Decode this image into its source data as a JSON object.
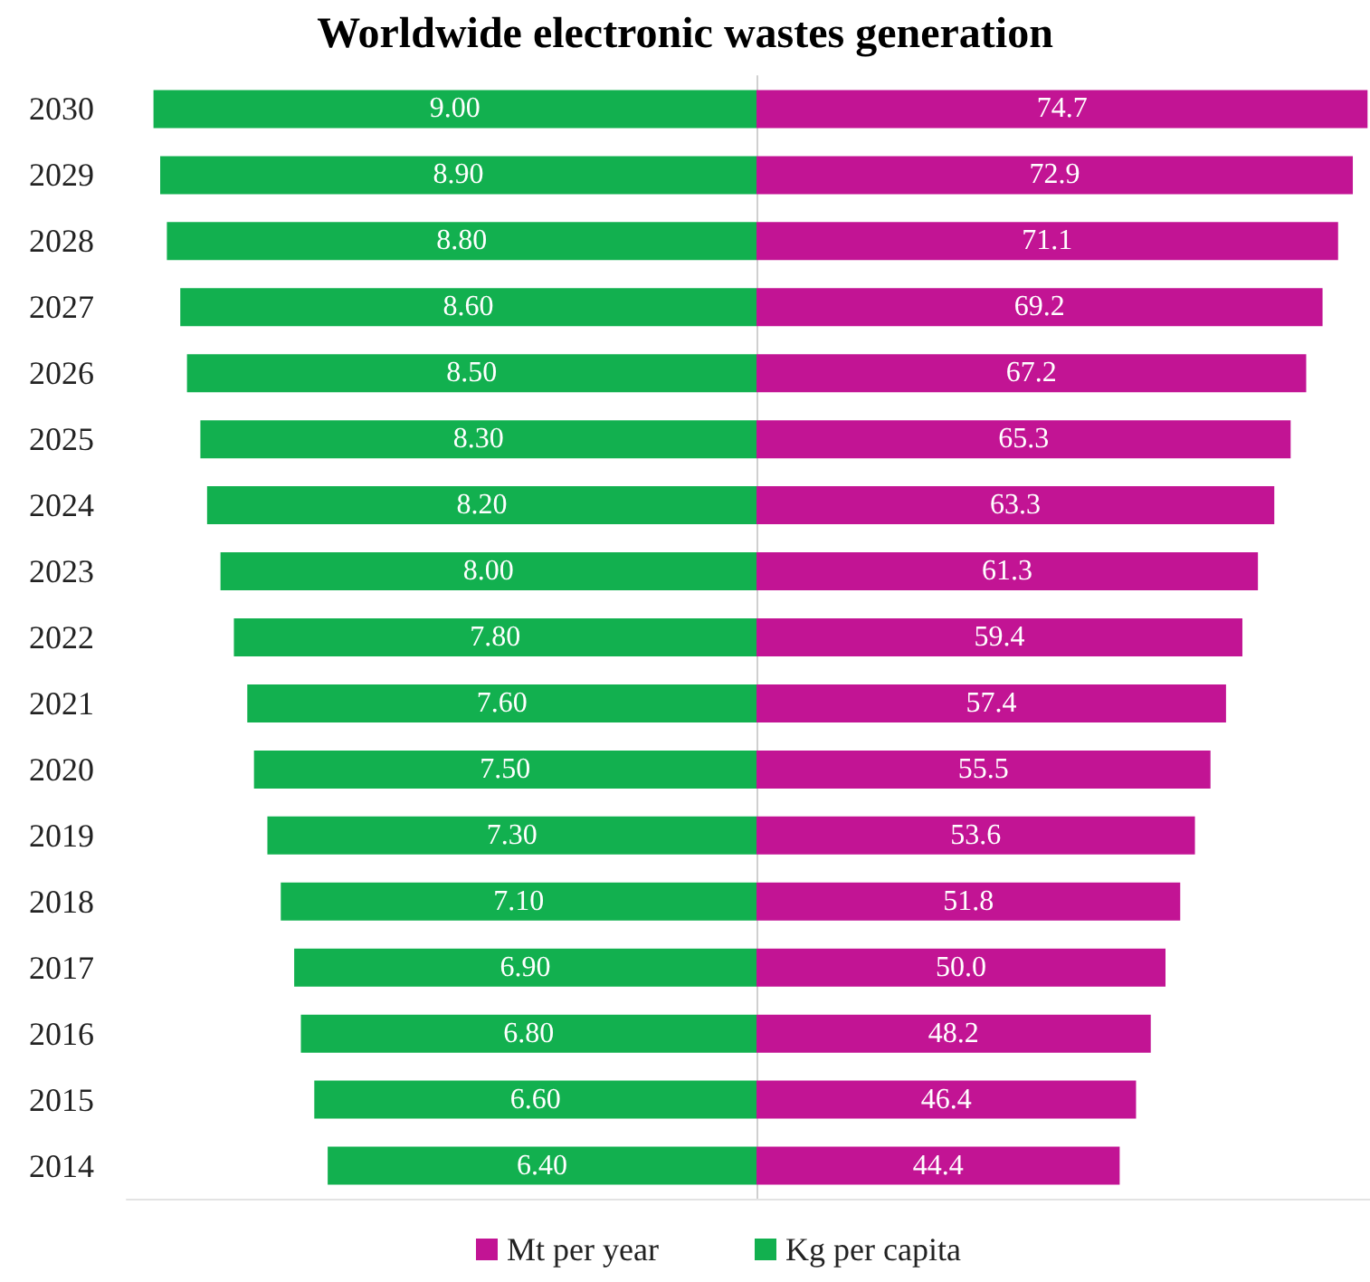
{
  "chart_data": [
    {
      "type": "bar",
      "title": "Worldwide electronic wastes generation",
      "orientation": "horizontal",
      "legend": "bottom",
      "tick_labels": "y",
      "xlim": [
        9.4,
        0
      ],
      "categories": [
        "2030",
        "2029",
        "2028",
        "2027",
        "2026",
        "2025",
        "2024",
        "2023",
        "2022",
        "2021",
        "2020",
        "2019",
        "2018",
        "2017",
        "2016",
        "2015",
        "2014"
      ],
      "series": [
        {
          "name": "Kg per capita",
          "color": "#12b04f",
          "values": [
            9.0,
            8.9,
            8.8,
            8.6,
            8.5,
            8.3,
            8.2,
            8.0,
            7.8,
            7.6,
            7.5,
            7.3,
            7.1,
            6.9,
            6.8,
            6.6,
            6.4
          ],
          "value_labels": [
            "9.00",
            "8.90",
            "8.80",
            "8.60",
            "8.50",
            "8.30",
            "8.20",
            "8.00",
            "7.80",
            "7.60",
            "7.50",
            "7.30",
            "7.10",
            "6.90",
            "6.80",
            "6.60",
            "6.40"
          ]
        }
      ]
    },
    {
      "type": "bar",
      "orientation": "horizontal",
      "legend": "bottom",
      "tick_labels": false,
      "xlim": [
        0,
        75
      ],
      "categories": [
        "2030",
        "2029",
        "2028",
        "2027",
        "2026",
        "2025",
        "2024",
        "2023",
        "2022",
        "2021",
        "2020",
        "2019",
        "2018",
        "2017",
        "2016",
        "2015",
        "2014"
      ],
      "series": [
        {
          "name": "Mt per year",
          "color": "#c21494",
          "values": [
            74.7,
            72.9,
            71.1,
            69.2,
            67.2,
            65.3,
            63.3,
            61.3,
            59.4,
            57.4,
            55.5,
            53.6,
            51.8,
            50.0,
            48.2,
            46.4,
            44.4
          ],
          "value_labels": [
            "74.7",
            "72.9",
            "71.1",
            "69.2",
            "67.2",
            "65.3",
            "63.3",
            "61.3",
            "59.4",
            "57.4",
            "55.5",
            "53.6",
            "51.8",
            "50.0",
            "48.2",
            "46.4",
            "44.4"
          ]
        }
      ]
    }
  ]
}
